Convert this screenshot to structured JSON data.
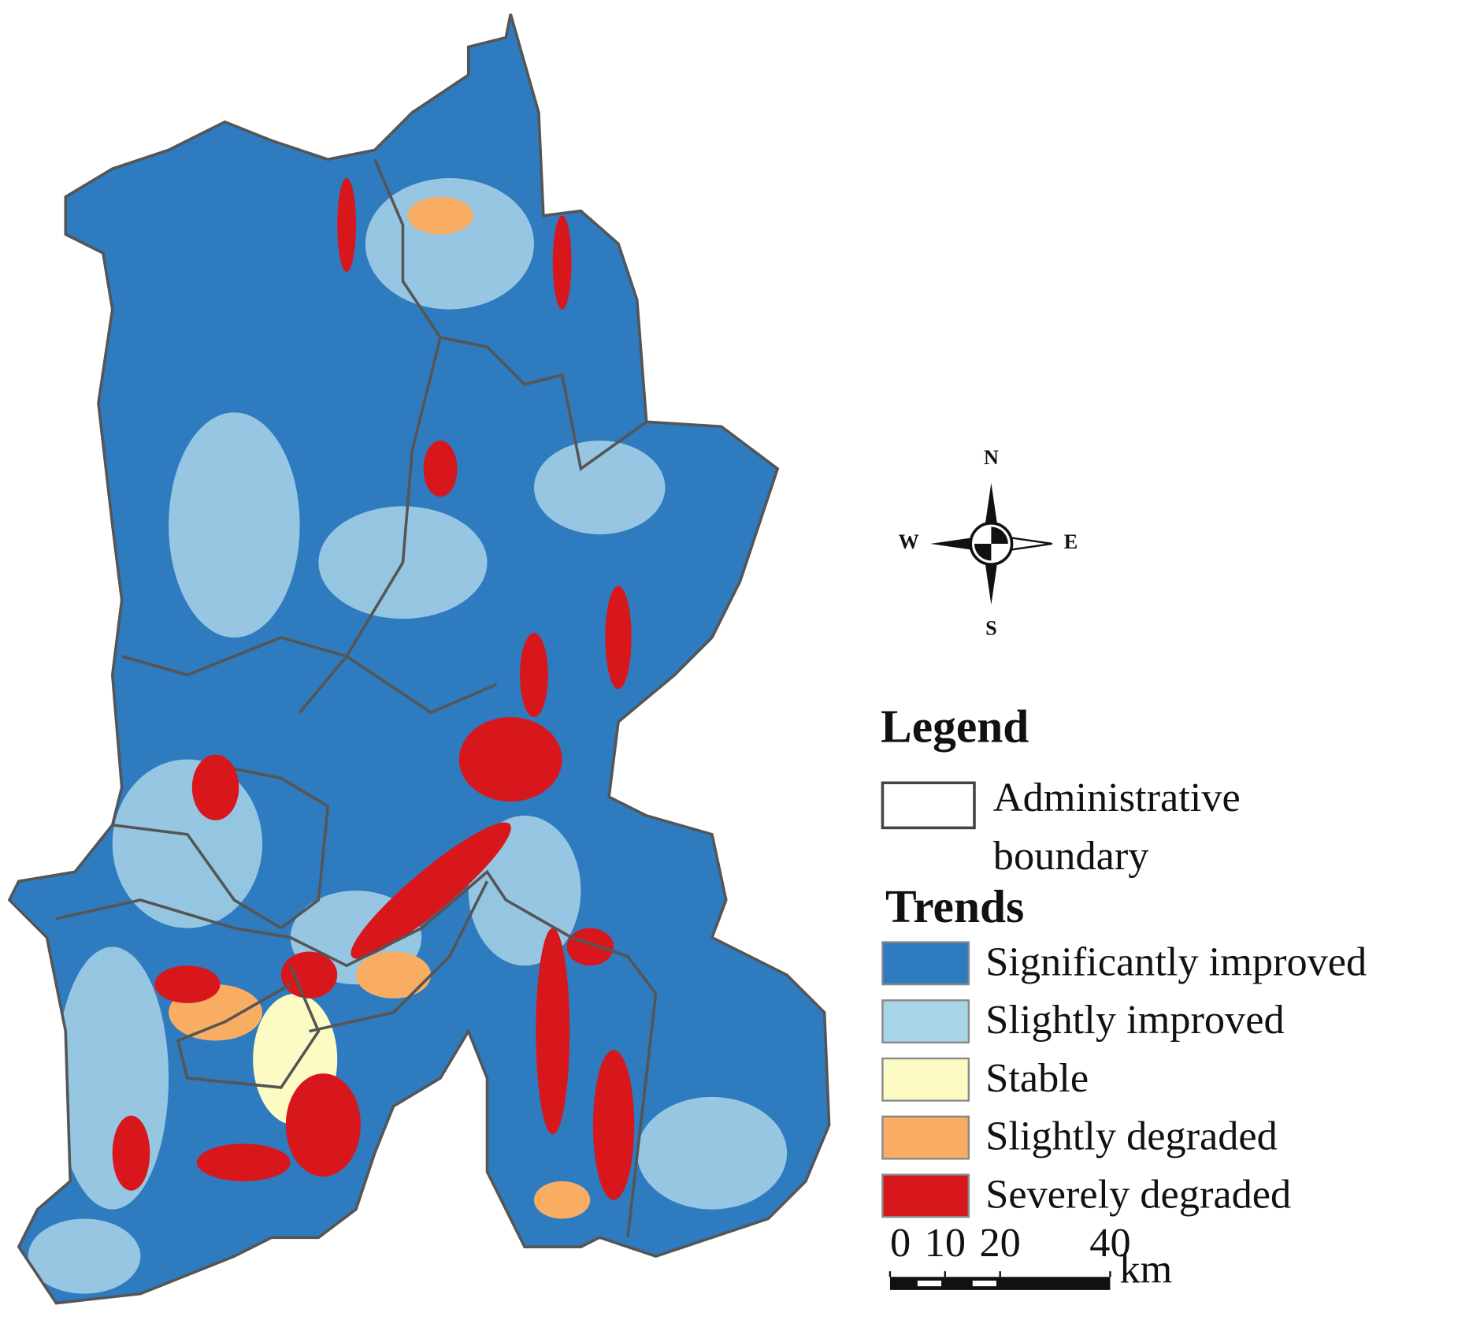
{
  "map": {
    "legend_title": "Legend",
    "boundary_label": "Administrative boundary",
    "trends_title": "Trends",
    "trends": [
      {
        "name": "Significantly improved",
        "color": "#2e7bbf"
      },
      {
        "name": "Slightly improved",
        "color": "#a8d4e8"
      },
      {
        "name": "Stable",
        "color": "#fcfbc4"
      },
      {
        "name": "Slightly degraded",
        "color": "#f8ad63"
      },
      {
        "name": "Severely degraded",
        "color": "#d8171c"
      }
    ],
    "compass": {
      "north": "N",
      "south": "S",
      "west": "W",
      "east": "E"
    },
    "scale_bar": {
      "ticks": [
        0,
        10,
        20,
        40
      ],
      "unit": "km"
    }
  }
}
